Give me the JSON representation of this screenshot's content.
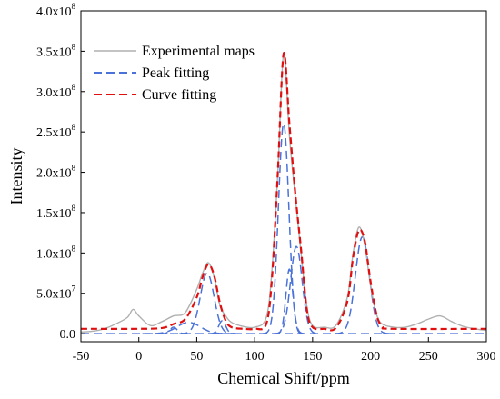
{
  "chart_data": {
    "type": "line",
    "xlabel": "Chemical Shift/ppm",
    "ylabel": "Intensity",
    "xlim": [
      -50,
      300
    ],
    "ylim": [
      -10000000.0,
      400000000.0
    ],
    "x_ticks": [
      -50,
      0,
      50,
      100,
      150,
      200,
      250,
      300
    ],
    "x_tick_labels": [
      "-50",
      "0",
      "50",
      "100",
      "150",
      "200",
      "250",
      "300"
    ],
    "y_ticks": [
      0,
      50000000.0,
      100000000.0,
      150000000.0,
      200000000.0,
      250000000.0,
      300000000.0,
      350000000.0,
      400000000.0
    ],
    "y_tick_labels": [
      {
        "mant": "0.0",
        "exp": ""
      },
      {
        "mant": "5.0x10",
        "exp": "7"
      },
      {
        "mant": "1.0x10",
        "exp": "8"
      },
      {
        "mant": "1.5x10",
        "exp": "8"
      },
      {
        "mant": "2.0x10",
        "exp": "8"
      },
      {
        "mant": "2.5x10",
        "exp": "8"
      },
      {
        "mant": "3.0x10",
        "exp": "8"
      },
      {
        "mant": "3.5x10",
        "exp": "8"
      },
      {
        "mant": "4.0x10",
        "exp": "8"
      }
    ],
    "legend": [
      {
        "label": "Experimental maps",
        "style": "solid",
        "color": "#b0b0b0"
      },
      {
        "label": "Peak fitting",
        "style": "dashed",
        "color": "#4a72d8"
      },
      {
        "label": "Curve fitting",
        "style": "dashed",
        "color": "#e01010"
      }
    ],
    "legend_position": "top-left",
    "series": [
      {
        "name": "Experimental maps",
        "x": [
          -50,
          -40,
          -30,
          -20,
          -10,
          -5,
          0,
          10,
          20,
          30,
          40,
          50,
          55,
          60,
          65,
          70,
          75,
          80,
          90,
          100,
          110,
          115,
          120,
          125,
          130,
          135,
          140,
          145,
          150,
          160,
          170,
          180,
          185,
          190,
          195,
          200,
          205,
          210,
          220,
          230,
          240,
          250,
          260,
          270,
          280,
          290,
          300
        ],
        "y": [
          2000000.0,
          3000000.0,
          6000000.0,
          12000000.0,
          20000000.0,
          30000000.0,
          22000000.0,
          10000000.0,
          15000000.0,
          22000000.0,
          26000000.0,
          55000000.0,
          75000000.0,
          88000000.0,
          70000000.0,
          35000000.0,
          22000000.0,
          14000000.0,
          9000000.0,
          8000000.0,
          20000000.0,
          80000000.0,
          200000000.0,
          348000000.0,
          245000000.0,
          170000000.0,
          100000000.0,
          35000000.0,
          10000000.0,
          8000000.0,
          10000000.0,
          45000000.0,
          100000000.0,
          132000000.0,
          110000000.0,
          60000000.0,
          25000000.0,
          12000000.0,
          8000000.0,
          8000000.0,
          12000000.0,
          18000000.0,
          22000000.0,
          15000000.0,
          9000000.0,
          6000000.0,
          4000000.0
        ]
      },
      {
        "name": "Curve fitting",
        "x": [
          -50,
          0,
          20,
          30,
          40,
          50,
          55,
          60,
          65,
          70,
          75,
          80,
          90,
          100,
          110,
          115,
          120,
          125,
          130,
          135,
          140,
          145,
          150,
          160,
          170,
          180,
          185,
          190,
          195,
          200,
          205,
          210,
          220,
          300
        ],
        "y": [
          6000000.0,
          6000000.0,
          7000000.0,
          12000000.0,
          18000000.0,
          45000000.0,
          70000000.0,
          86000000.0,
          72000000.0,
          38000000.0,
          16000000.0,
          8000000.0,
          6000000.0,
          6000000.0,
          12000000.0,
          70000000.0,
          200000000.0,
          347000000.0,
          260000000.0,
          175000000.0,
          105000000.0,
          30000000.0,
          8000000.0,
          6000000.0,
          7000000.0,
          40000000.0,
          95000000.0,
          128000000.0,
          115000000.0,
          65000000.0,
          25000000.0,
          9000000.0,
          6000000.0,
          6000000.0
        ]
      }
    ],
    "fitted_peaks": [
      {
        "center": 125,
        "height": 260000000.0,
        "width": 4.5
      },
      {
        "center": 136,
        "height": 108000000.0,
        "width": 5
      },
      {
        "center": 130,
        "height": 80000000.0,
        "width": 3
      },
      {
        "center": 193,
        "height": 120000000.0,
        "width": 6
      },
      {
        "center": 59,
        "height": 75000000.0,
        "width": 6
      },
      {
        "center": 43,
        "height": 14000000.0,
        "width": 10
      },
      {
        "center": 72,
        "height": 16000000.0,
        "width": 3
      },
      {
        "center": 30,
        "height": 8000000.0,
        "width": 3
      }
    ]
  }
}
